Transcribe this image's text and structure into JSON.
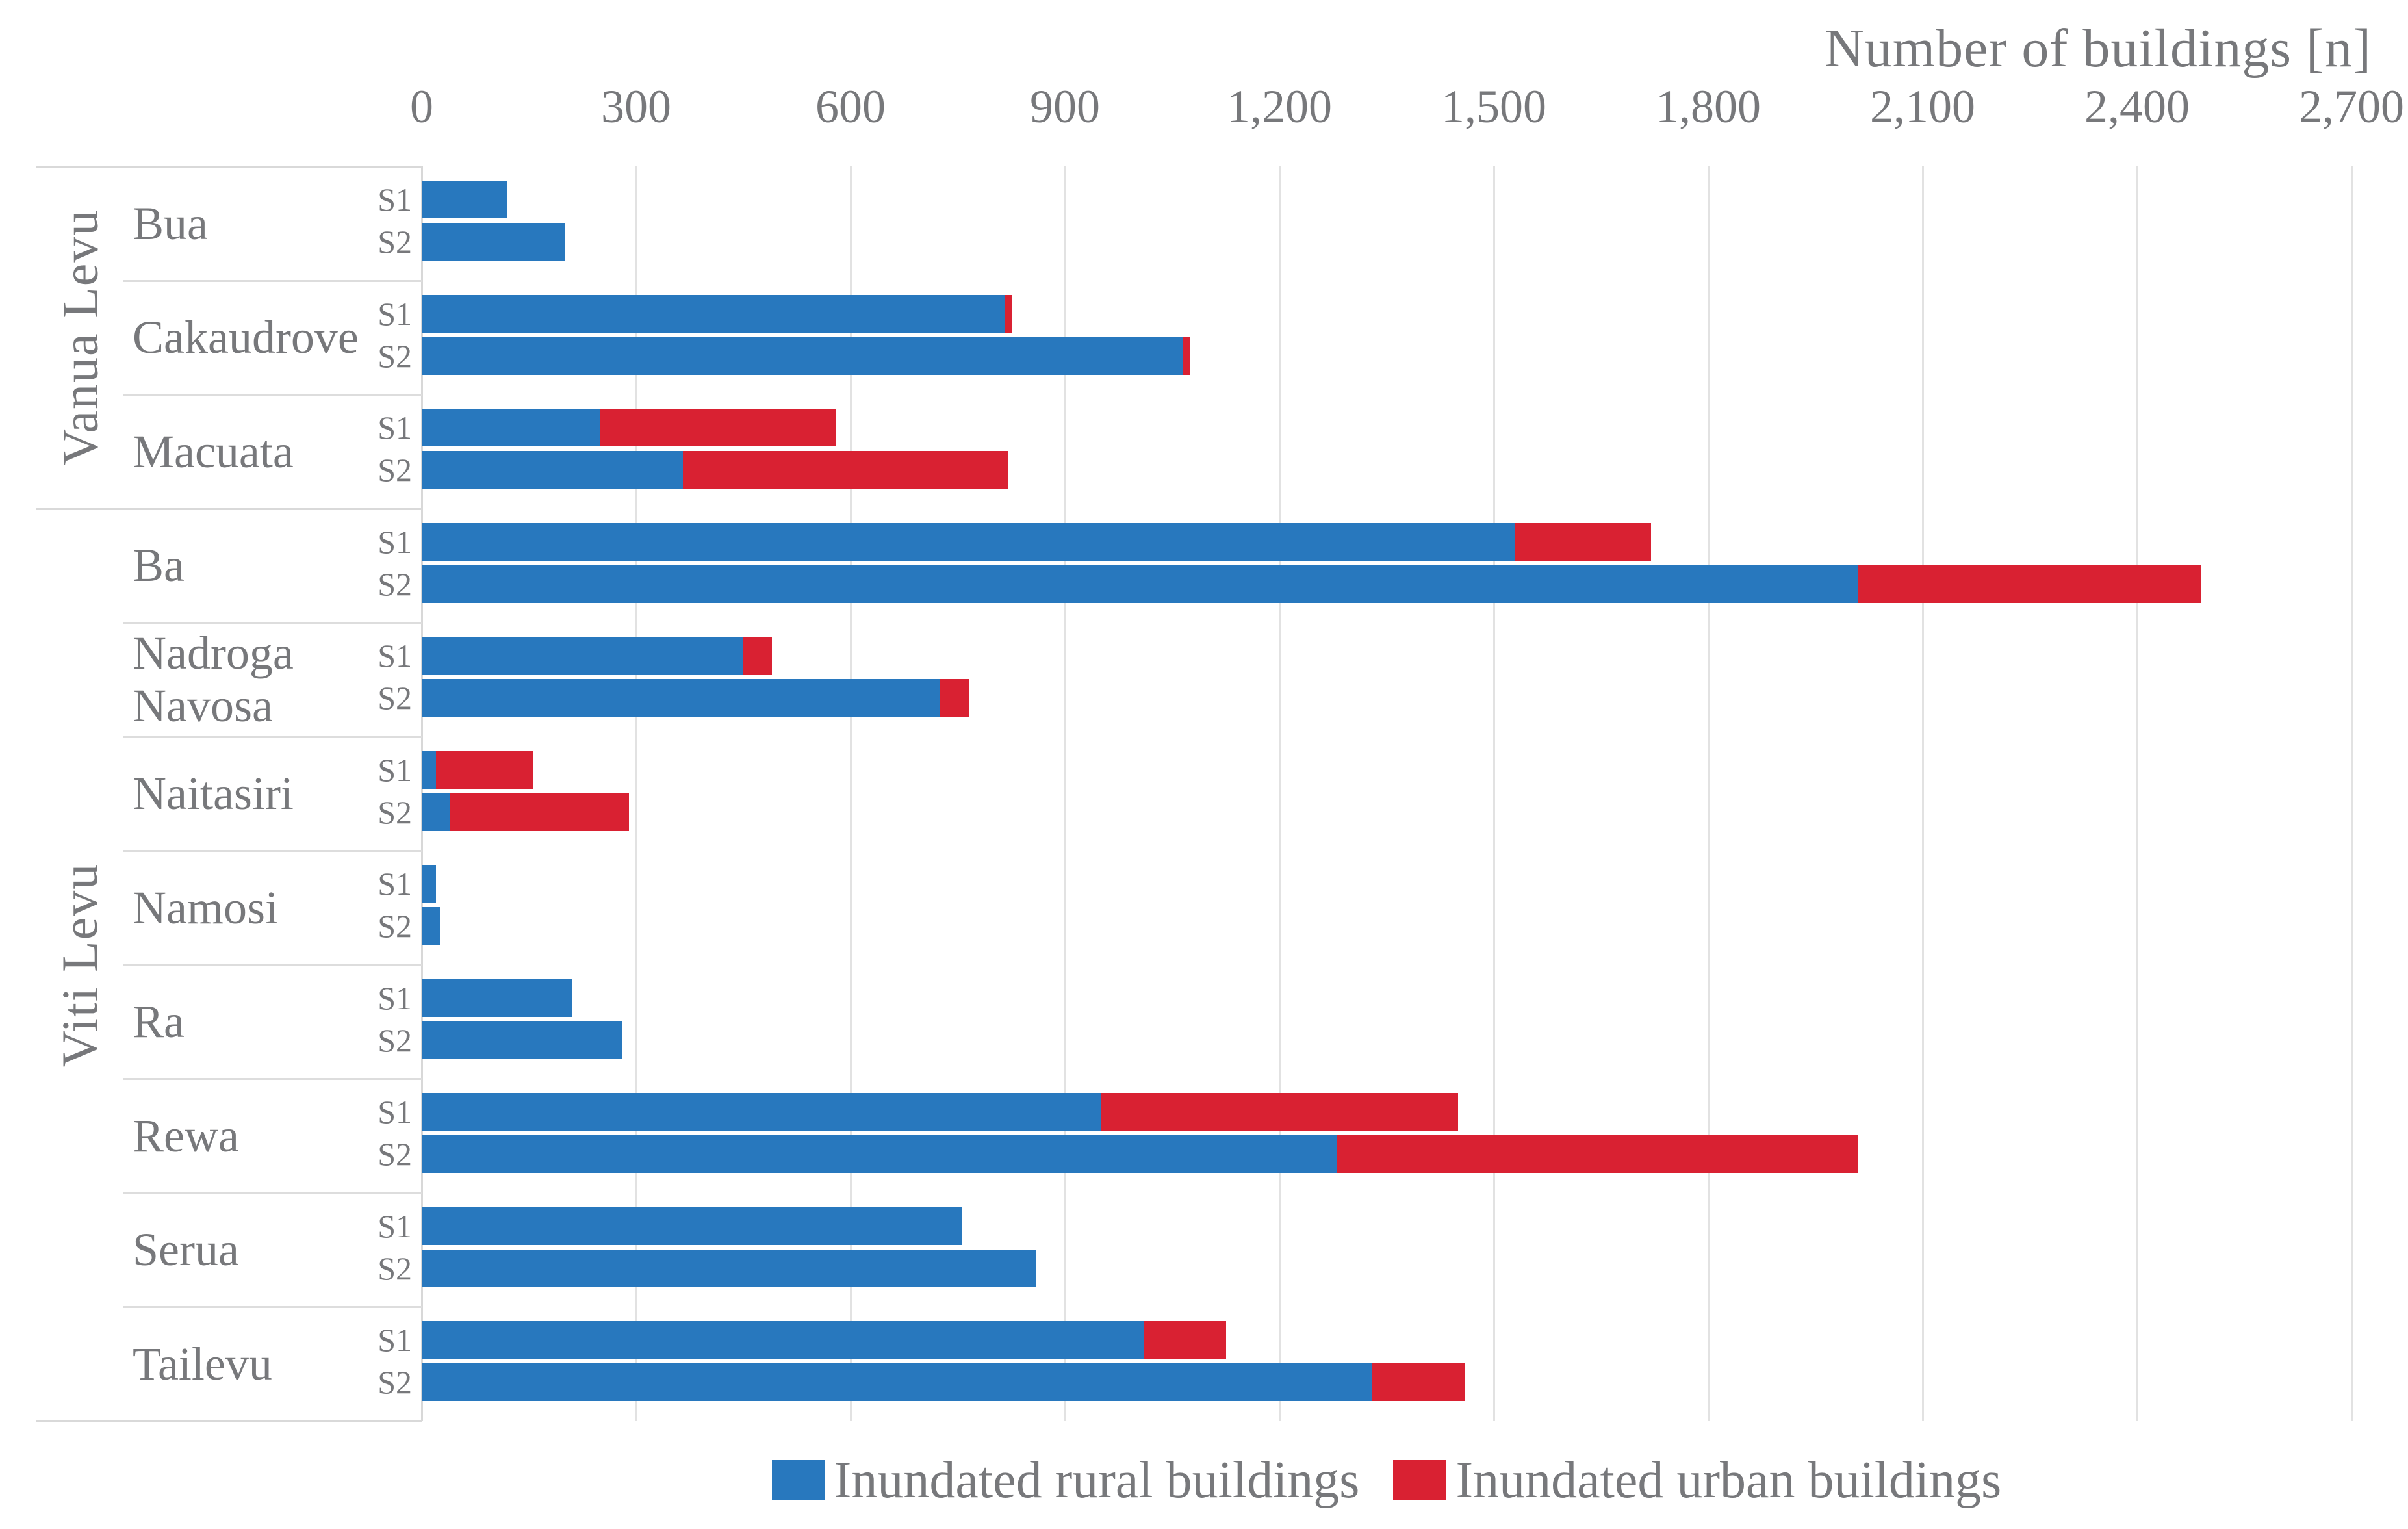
{
  "chart_data": {
    "type": "bar",
    "orientation": "horizontal",
    "stacked": true,
    "title": "",
    "xlabel": "Number of buildings [n]",
    "ylabel": "",
    "xlim": [
      0,
      2700
    ],
    "xticks": [
      "0",
      "300",
      "600",
      "900",
      "1,200",
      "1,500",
      "1,800",
      "2,100",
      "2,400",
      "2,700"
    ],
    "xtick_values": [
      0,
      300,
      600,
      900,
      1200,
      1500,
      1800,
      2100,
      2400,
      2700
    ],
    "grid": true,
    "legend_position": "bottom",
    "series": [
      {
        "name": "Inundated rural buildings",
        "key": "rural",
        "color": "#2878BE"
      },
      {
        "name": "Inundated urban buildings",
        "key": "urban",
        "color": "#D92132"
      }
    ],
    "island_groups": [
      {
        "island": "Vanua Levu",
        "provinces": [
          {
            "name": "Bua",
            "scenarios": [
              {
                "label": "S1",
                "rural": 120,
                "urban": 0
              },
              {
                "label": "S2",
                "rural": 200,
                "urban": 0
              }
            ]
          },
          {
            "name": "Cakaudrove",
            "scenarios": [
              {
                "label": "S1",
                "rural": 815,
                "urban": 10
              },
              {
                "label": "S2",
                "rural": 1065,
                "urban": 10
              }
            ]
          },
          {
            "name": "Macuata",
            "scenarios": [
              {
                "label": "S1",
                "rural": 250,
                "urban": 330
              },
              {
                "label": "S2",
                "rural": 365,
                "urban": 455
              }
            ]
          }
        ]
      },
      {
        "island": "Viti Levu",
        "provinces": [
          {
            "name": "Ba",
            "scenarios": [
              {
                "label": "S1",
                "rural": 1530,
                "urban": 190
              },
              {
                "label": "S2",
                "rural": 2010,
                "urban": 480
              }
            ]
          },
          {
            "name": "Nadroga Navosa",
            "scenarios": [
              {
                "label": "S1",
                "rural": 450,
                "urban": 40
              },
              {
                "label": "S2",
                "rural": 725,
                "urban": 40
              }
            ]
          },
          {
            "name": "Naitasiri",
            "scenarios": [
              {
                "label": "S1",
                "rural": 20,
                "urban": 135
              },
              {
                "label": "S2",
                "rural": 40,
                "urban": 250
              }
            ]
          },
          {
            "name": "Namosi",
            "scenarios": [
              {
                "label": "S1",
                "rural": 20,
                "urban": 0
              },
              {
                "label": "S2",
                "rural": 25,
                "urban": 0
              }
            ]
          },
          {
            "name": "Ra",
            "scenarios": [
              {
                "label": "S1",
                "rural": 210,
                "urban": 0
              },
              {
                "label": "S2",
                "rural": 280,
                "urban": 0
              }
            ]
          },
          {
            "name": "Rewa",
            "scenarios": [
              {
                "label": "S1",
                "rural": 950,
                "urban": 500
              },
              {
                "label": "S2",
                "rural": 1280,
                "urban": 730
              }
            ]
          },
          {
            "name": "Serua",
            "scenarios": [
              {
                "label": "S1",
                "rural": 755,
                "urban": 0
              },
              {
                "label": "S2",
                "rural": 860,
                "urban": 0
              }
            ]
          },
          {
            "name": "Tailevu",
            "scenarios": [
              {
                "label": "S1",
                "rural": 1010,
                "urban": 115
              },
              {
                "label": "S2",
                "rural": 1330,
                "urban": 130
              }
            ]
          }
        ]
      }
    ]
  }
}
